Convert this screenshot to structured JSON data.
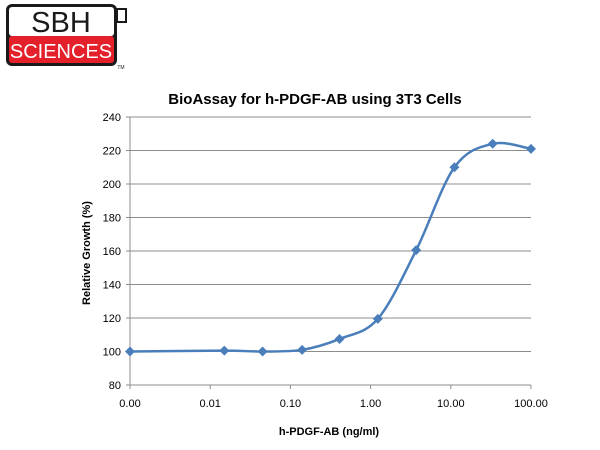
{
  "logo": {
    "top_text": "SBH",
    "bottom_text": "SCIENCES",
    "tm": "TM",
    "colors": {
      "red": "#E4202A",
      "black": "#1a1a1a",
      "white": "#ffffff"
    }
  },
  "chart_data": {
    "type": "line",
    "title": "BioAssay for h-PDGF-AB using 3T3 Cells",
    "xlabel": "h-PDGF-AB (ng/ml)",
    "ylabel": "Relative Growth (%)",
    "x_scale": "log",
    "x_ticks": [
      "0.00",
      "0.01",
      "0.10",
      "1.00",
      "10.00",
      "100.00"
    ],
    "x_tick_values": [
      0.001,
      0.01,
      0.1,
      1,
      10,
      100
    ],
    "ylim": [
      80,
      240
    ],
    "y_ticks": [
      80,
      100,
      120,
      140,
      160,
      180,
      200,
      220,
      240
    ],
    "grid": true,
    "legend": "none",
    "line_color": "#4A7EBB",
    "marker": "diamond",
    "series": [
      {
        "x": [
          0.001,
          0.015,
          0.045,
          0.14,
          0.41,
          1.23,
          3.7,
          11.1,
          33.3,
          100
        ],
        "y": [
          100,
          100.5,
          100,
          101,
          107.5,
          119.5,
          160.5,
          210,
          224,
          221
        ]
      }
    ]
  }
}
